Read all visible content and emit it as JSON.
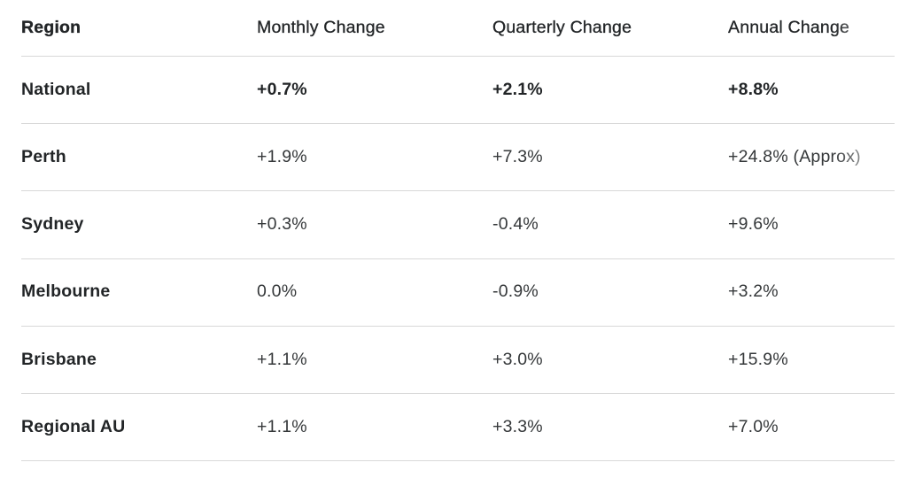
{
  "table": {
    "columns": [
      {
        "key": "region",
        "label": "Region"
      },
      {
        "key": "monthly",
        "label": "Monthly Change"
      },
      {
        "key": "quarterly",
        "label": "Quarterly Change"
      },
      {
        "key": "annual",
        "label": "Annual Change"
      }
    ],
    "rows": [
      {
        "region": "National",
        "monthly": "+0.7%",
        "quarterly": "+2.1%",
        "annual": "+8.8%",
        "emphasis": true
      },
      {
        "region": "Perth",
        "monthly": "+1.9%",
        "quarterly": "+7.3%",
        "annual": "+24.8% (Approx)",
        "emphasis": false
      },
      {
        "region": "Sydney",
        "monthly": "+0.3%",
        "quarterly": "-0.4%",
        "annual": "+9.6%",
        "emphasis": false
      },
      {
        "region": "Melbourne",
        "monthly": "0.0%",
        "quarterly": "-0.9%",
        "annual": "+3.2%",
        "emphasis": false
      },
      {
        "region": "Brisbane",
        "monthly": "+1.1%",
        "quarterly": "+3.0%",
        "annual": "+15.9%",
        "emphasis": false
      },
      {
        "region": "Regional AU",
        "monthly": "+1.1%",
        "quarterly": "+3.3%",
        "annual": "+7.0%",
        "emphasis": false
      }
    ]
  },
  "colors": {
    "background": "#ffffff",
    "divider": "#d8d8d8",
    "text_primary": "#222527",
    "text_secondary": "#35383a"
  },
  "chart_data": {
    "type": "table",
    "title": "Regional property price changes",
    "categories": [
      "National",
      "Perth",
      "Sydney",
      "Melbourne",
      "Brisbane",
      "Regional AU"
    ],
    "series": [
      {
        "name": "Monthly Change (%)",
        "values": [
          0.7,
          1.9,
          0.3,
          0.0,
          1.1,
          1.1
        ]
      },
      {
        "name": "Quarterly Change (%)",
        "values": [
          2.1,
          7.3,
          -0.4,
          -0.9,
          3.0,
          3.3
        ]
      },
      {
        "name": "Annual Change (%)",
        "values": [
          8.8,
          24.8,
          9.6,
          3.2,
          15.9,
          7.0
        ]
      }
    ],
    "annotations": [
      "Perth annual value labelled as approximate: +24.8% (Approx)",
      "National row emphasized in bold"
    ]
  }
}
